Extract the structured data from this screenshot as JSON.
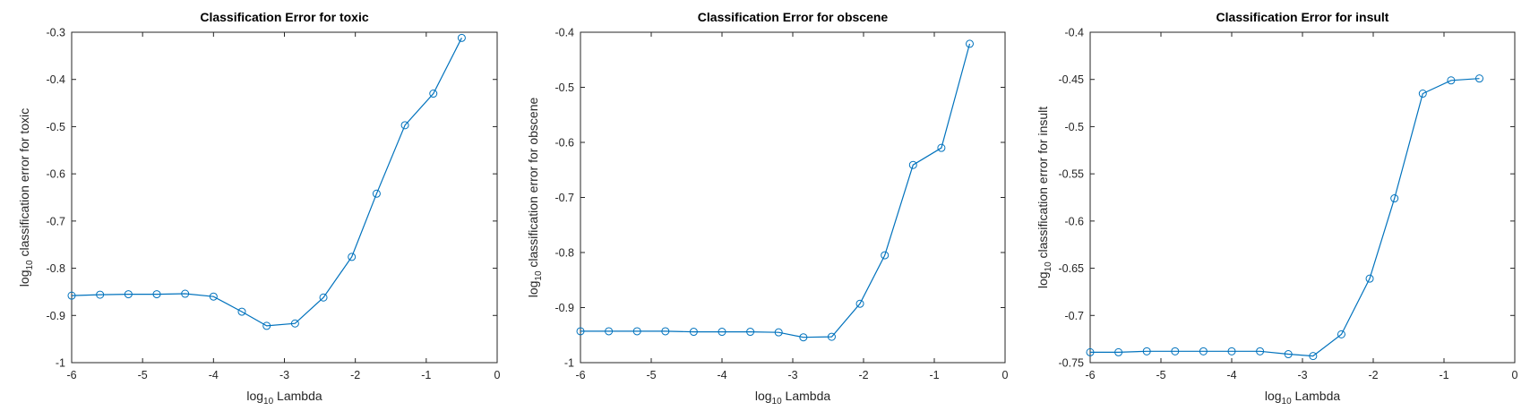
{
  "colors": {
    "series": "#0072BD",
    "axis": "#262626",
    "background": "#ffffff"
  },
  "chart_data": [
    {
      "type": "line",
      "title": "Classification Error for toxic",
      "xlabel": {
        "base": "log",
        "sub": "10",
        "rest": " Lambda"
      },
      "ylabel": {
        "base": "log",
        "sub": "10",
        "rest": " classification error for toxic"
      },
      "xlim": [
        -6,
        0
      ],
      "ylim": [
        -1,
        -0.3
      ],
      "xticks": [
        -6,
        -5,
        -4,
        -3,
        -2,
        -1,
        0
      ],
      "xtick_labels": [
        "-6",
        "-5",
        "-4",
        "-3",
        "-2",
        "-1",
        "0"
      ],
      "yticks": [
        -1,
        -0.9,
        -0.8,
        -0.7,
        -0.6,
        -0.5,
        -0.4,
        -0.3
      ],
      "ytick_labels": [
        "-1",
        "-0.9",
        "-0.8",
        "-0.7",
        "-0.6",
        "-0.5",
        "-0.4",
        "-0.3"
      ],
      "marker": "circle",
      "grid": false,
      "x": [
        -6.0,
        -5.6,
        -5.2,
        -4.8,
        -4.4,
        -4.0,
        -3.6,
        -3.25,
        -2.85,
        -2.45,
        -2.05,
        -1.7,
        -1.3,
        -0.9,
        -0.5
      ],
      "y": [
        -0.858,
        -0.856,
        -0.855,
        -0.855,
        -0.854,
        -0.86,
        -0.892,
        -0.922,
        -0.917,
        -0.862,
        -0.776,
        -0.642,
        -0.497,
        -0.43,
        -0.312
      ]
    },
    {
      "type": "line",
      "title": "Classification Error for obscene",
      "xlabel": {
        "base": "log",
        "sub": "10",
        "rest": " Lambda"
      },
      "ylabel": {
        "base": "log",
        "sub": "10",
        "rest": " classification error for obscene"
      },
      "xlim": [
        -6,
        0
      ],
      "ylim": [
        -1,
        -0.4
      ],
      "xticks": [
        -6,
        -5,
        -4,
        -3,
        -2,
        -1,
        0
      ],
      "xtick_labels": [
        "-6",
        "-5",
        "-4",
        "-3",
        "-2",
        "-1",
        "0"
      ],
      "yticks": [
        -1,
        -0.9,
        -0.8,
        -0.7,
        -0.6,
        -0.5,
        -0.4
      ],
      "ytick_labels": [
        "-1",
        "-0.9",
        "-0.8",
        "-0.7",
        "-0.6",
        "-0.5",
        "-0.4"
      ],
      "marker": "circle",
      "grid": false,
      "x": [
        -6.0,
        -5.6,
        -5.2,
        -4.8,
        -4.4,
        -4.0,
        -3.6,
        -3.2,
        -2.85,
        -2.45,
        -2.05,
        -1.7,
        -1.3,
        -0.9,
        -0.5
      ],
      "y": [
        -0.943,
        -0.943,
        -0.943,
        -0.943,
        -0.944,
        -0.944,
        -0.944,
        -0.945,
        -0.954,
        -0.953,
        -0.893,
        -0.805,
        -0.641,
        -0.61,
        -0.421
      ]
    },
    {
      "type": "line",
      "title": "Classification Error for insult",
      "xlabel": {
        "base": "log",
        "sub": "10",
        "rest": " Lambda"
      },
      "ylabel": {
        "base": "log",
        "sub": "10",
        "rest": " classification error for insult"
      },
      "xlim": [
        -6,
        0
      ],
      "ylim": [
        -0.75,
        -0.4
      ],
      "xticks": [
        -6,
        -5,
        -4,
        -3,
        -2,
        -1,
        0
      ],
      "xtick_labels": [
        "-6",
        "-5",
        "-4",
        "-3",
        "-2",
        "-1",
        "0"
      ],
      "yticks": [
        -0.75,
        -0.7,
        -0.65,
        -0.6,
        -0.55,
        -0.5,
        -0.45,
        -0.4
      ],
      "ytick_labels": [
        "-0.75",
        "-0.7",
        "-0.65",
        "-0.6",
        "-0.55",
        "-0.5",
        "-0.45",
        "-0.4"
      ],
      "marker": "circle",
      "grid": false,
      "x": [
        -6.0,
        -5.6,
        -5.2,
        -4.8,
        -4.4,
        -4.0,
        -3.6,
        -3.2,
        -2.85,
        -2.45,
        -2.05,
        -1.7,
        -1.3,
        -0.9,
        -0.5
      ],
      "y": [
        -0.739,
        -0.739,
        -0.738,
        -0.738,
        -0.738,
        -0.738,
        -0.738,
        -0.741,
        -0.743,
        -0.72,
        -0.661,
        -0.576,
        -0.465,
        -0.451,
        -0.449
      ]
    }
  ]
}
